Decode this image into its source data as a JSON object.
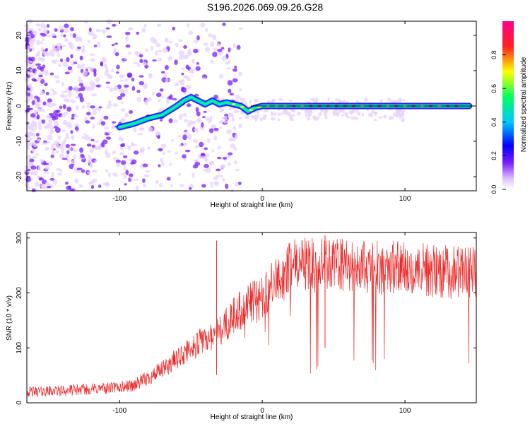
{
  "title": "S196.2026.069.09.26.G28",
  "colors": {
    "series": "#ee2a2a",
    "axis": "#000000",
    "colormap": [
      "#ffffff",
      "#e7d2ff",
      "#7a1cff",
      "#0000ff",
      "#00c8ff",
      "#00ff70",
      "#ffff00",
      "#ff2020",
      "#ff0090"
    ]
  },
  "chart_data": [
    {
      "id": "spectrogram",
      "type": "heatmap",
      "title": "",
      "xlabel": "Height of straight line (km)",
      "ylabel": "Frequency (Hz)",
      "xlim": [
        -165,
        150
      ],
      "ylim": [
        -24,
        24
      ],
      "xticks": [
        -100,
        0,
        100
      ],
      "yticks": [
        -20,
        -10,
        0,
        10,
        20
      ],
      "grid": false,
      "ridge": {
        "x": [
          -100,
          -90,
          -80,
          -70,
          -60,
          -55,
          -50,
          -45,
          -40,
          -35,
          -30,
          -25,
          -20,
          -15,
          -10,
          -5,
          0,
          10,
          20,
          30,
          40,
          60,
          80,
          100,
          120,
          145
        ],
        "y": [
          -6,
          -5,
          -3.5,
          -2.5,
          0,
          1.5,
          2.5,
          1.5,
          0.5,
          1.5,
          0.5,
          1,
          0.5,
          0,
          -1.5,
          -0.5,
          0,
          0,
          0,
          0,
          0,
          0,
          0,
          0,
          0,
          0
        ]
      },
      "colorbar": {
        "label": "Normalized spectral amplitude",
        "range": [
          0,
          1
        ],
        "ticks": [
          "0.0",
          "0.2",
          "0.4",
          "0.6",
          "0.8"
        ]
      }
    },
    {
      "id": "snr",
      "type": "line",
      "title": "",
      "xlabel": "Height of straight line (km)",
      "ylabel": "SNR (10 * v/v)",
      "xlim": [
        -165,
        150
      ],
      "ylim": [
        0,
        310
      ],
      "xticks": [
        -100,
        0,
        100
      ],
      "yticks": [
        0,
        100,
        200,
        300
      ],
      "grid": false,
      "series": [
        {
          "name": "SNR",
          "x": [
            -165,
            -140,
            -120,
            -100,
            -90,
            -80,
            -70,
            -60,
            -50,
            -40,
            -30,
            -20,
            -10,
            0,
            10,
            20,
            30,
            40,
            50,
            60,
            80,
            100,
            120,
            150
          ],
          "values": [
            20,
            22,
            25,
            28,
            32,
            45,
            60,
            80,
            100,
            115,
            130,
            160,
            180,
            195,
            220,
            245,
            255,
            250,
            250,
            248,
            248,
            245,
            240,
            235
          ]
        }
      ],
      "spikes": [
        {
          "x": -32,
          "value": 295
        },
        {
          "x": 44,
          "value": 305
        }
      ]
    }
  ]
}
